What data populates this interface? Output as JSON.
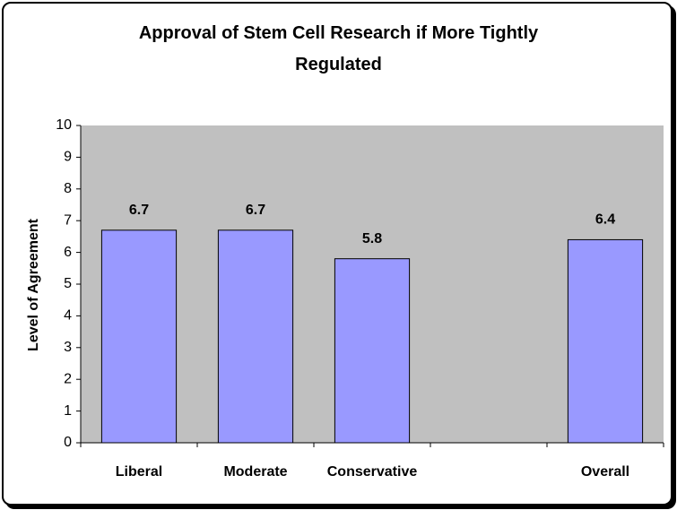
{
  "chart_data": {
    "type": "bar",
    "title": "Approval of Stem Cell Research if More Tightly Regulated",
    "y_label": "Level of Agreement",
    "categories": [
      "Liberal",
      "Moderate",
      "Conservative",
      null,
      "Overall"
    ],
    "values": [
      6.7,
      6.7,
      5.8,
      null,
      6.4
    ],
    "color": "#9999ff",
    "plot_background": "#c0c0c0",
    "ylim": [
      0,
      10
    ],
    "yticks": [
      0,
      1,
      2,
      3,
      4,
      5,
      6,
      7,
      8,
      9,
      10
    ],
    "grid": false
  }
}
